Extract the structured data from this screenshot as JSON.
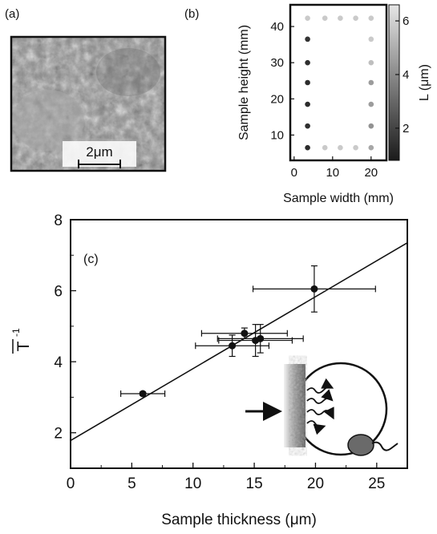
{
  "panel_a": {
    "label": "(a)",
    "scalebar_label": "2μm"
  },
  "panel_b": {
    "label": "(b)",
    "xlabel": "Sample width (mm)",
    "ylabel": "Sample height (mm)",
    "colorbar_label": "L (μm)"
  },
  "panel_c": {
    "label": "(c)",
    "xlabel": "Sample thickness (μm)",
    "ylabel_main": "T",
    "ylabel_sup": "-1"
  },
  "chart_data": [
    {
      "type": "scatter",
      "panel": "b",
      "xlim": [
        -1,
        24
      ],
      "ylim": [
        3,
        46
      ],
      "xticks": [
        0,
        10,
        20
      ],
      "yticks": [
        10,
        20,
        30,
        40
      ],
      "colorbar": {
        "ticks": [
          2,
          4,
          6
        ],
        "range": [
          0.8,
          6.6
        ],
        "low_color": "#1a1a1a",
        "high_color": "#e6e6e6"
      },
      "points": [
        {
          "x": 3.5,
          "y": 42.3,
          "L": 5.8
        },
        {
          "x": 8,
          "y": 42.3,
          "L": 5.8
        },
        {
          "x": 12,
          "y": 42.3,
          "L": 5.8
        },
        {
          "x": 16,
          "y": 42.3,
          "L": 5.8
        },
        {
          "x": 20,
          "y": 42.3,
          "L": 5.8
        },
        {
          "x": 3.5,
          "y": 36.5,
          "L": 1.5
        },
        {
          "x": 3.5,
          "y": 30,
          "L": 1.4
        },
        {
          "x": 3.5,
          "y": 24.5,
          "L": 1.3
        },
        {
          "x": 3.5,
          "y": 18.5,
          "L": 1.3
        },
        {
          "x": 3.5,
          "y": 12.5,
          "L": 1.4
        },
        {
          "x": 3.5,
          "y": 6.5,
          "L": 1.3
        },
        {
          "x": 8,
          "y": 6.5,
          "L": 5.8
        },
        {
          "x": 12,
          "y": 6.5,
          "L": 5.8
        },
        {
          "x": 16,
          "y": 6.5,
          "L": 5.8
        },
        {
          "x": 20,
          "y": 6.5,
          "L": 4.8
        },
        {
          "x": 20,
          "y": 36.5,
          "L": 5.8
        },
        {
          "x": 20,
          "y": 30,
          "L": 5.5
        },
        {
          "x": 20,
          "y": 24.5,
          "L": 4.5
        },
        {
          "x": 20,
          "y": 18.5,
          "L": 4.5
        },
        {
          "x": 20,
          "y": 12.5,
          "L": 4.2
        }
      ]
    },
    {
      "type": "scatter",
      "panel": "c",
      "xlim": [
        0,
        27.5
      ],
      "ylim": [
        1,
        8
      ],
      "xticks": [
        0,
        5,
        10,
        15,
        20,
        25
      ],
      "yticks": [
        2,
        4,
        6,
        8
      ],
      "points": [
        {
          "x": 5.9,
          "y": 3.1,
          "xerr": 1.8,
          "yerr": 0.05
        },
        {
          "x": 13.2,
          "y": 4.45,
          "xerr": 3.0,
          "yerr": 0.3
        },
        {
          "x": 14.2,
          "y": 4.8,
          "xerr": 3.5,
          "yerr": 0.15
        },
        {
          "x": 15.1,
          "y": 4.6,
          "xerr": 3.0,
          "yerr": 0.45
        },
        {
          "x": 15.5,
          "y": 4.65,
          "xerr": 3.5,
          "yerr": 0.4
        },
        {
          "x": 19.9,
          "y": 6.05,
          "xerr": 5.0,
          "yerr": 0.65
        }
      ],
      "fit_line": {
        "x": [
          0,
          27.5
        ],
        "y": [
          1.78,
          7.35
        ]
      }
    }
  ]
}
